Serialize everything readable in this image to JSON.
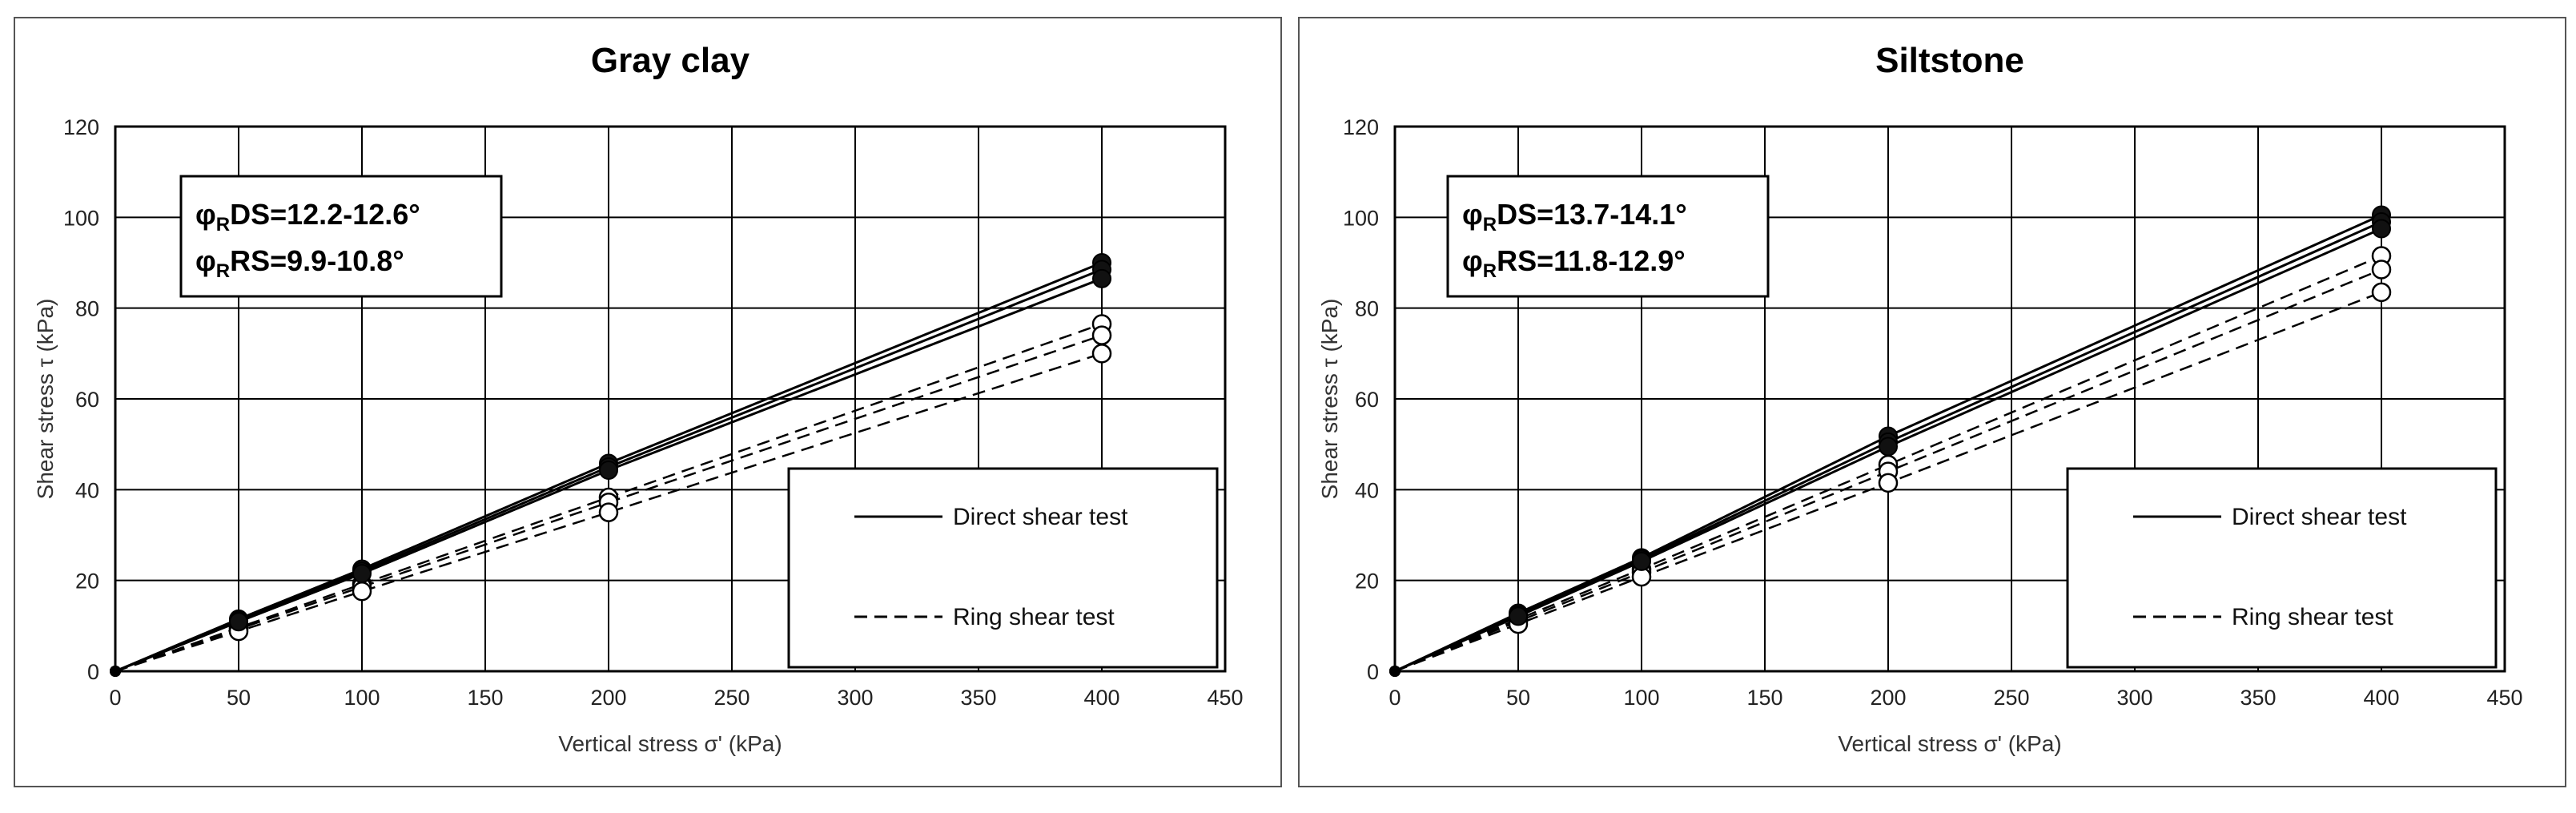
{
  "chart_data": [
    {
      "type": "line",
      "title": "Gray clay",
      "xlabel": "Vertical stress σ' (kPa)",
      "ylabel": "Shear stress τ (kPa)",
      "xlim": [
        0,
        450
      ],
      "ylim": [
        0,
        120
      ],
      "xticks": [
        "0",
        "50",
        "100",
        "150",
        "200",
        "250",
        "300",
        "350",
        "400",
        "450"
      ],
      "yticks": [
        "0",
        "20",
        "40",
        "60",
        "80",
        "100",
        "120"
      ],
      "grid": true,
      "annotation": {
        "line1": {
          "prefix": "φ",
          "sub": "R",
          "text": "DS=12.2-12.6°"
        },
        "line2": {
          "prefix": "φ",
          "sub": "R",
          "text": "RS=9.9-10.8°"
        }
      },
      "legend": {
        "position": "bottom-right",
        "entries": [
          "Direct shear test",
          "Ring shear test"
        ]
      },
      "series": [
        {
          "name": "Direct shear test",
          "style": "solid",
          "marker": "filled-circle",
          "x": [
            0,
            50,
            100,
            200,
            400
          ],
          "y": [
            0,
            11.5,
            22.5,
            45.8,
            90.0
          ]
        },
        {
          "name": "Direct shear test",
          "style": "solid",
          "marker": "filled-circle",
          "x": [
            0,
            50,
            100,
            200,
            400
          ],
          "y": [
            0,
            11.2,
            22.0,
            45.0,
            88.5
          ]
        },
        {
          "name": "Direct shear test",
          "style": "solid",
          "marker": "filled-circle",
          "x": [
            0,
            50,
            100,
            200,
            400
          ],
          "y": [
            0,
            10.9,
            21.5,
            44.3,
            86.5
          ]
        },
        {
          "name": "Ring shear test",
          "style": "dashed",
          "marker": "open-circle",
          "x": [
            0,
            50,
            100,
            200,
            400
          ],
          "y": [
            0,
            9.6,
            19.2,
            38.3,
            76.5
          ]
        },
        {
          "name": "Ring shear test",
          "style": "dashed",
          "marker": "open-circle",
          "x": [
            0,
            50,
            100,
            200,
            400
          ],
          "y": [
            0,
            9.3,
            18.6,
            37.2,
            74.0
          ]
        },
        {
          "name": "Ring shear test",
          "style": "dashed",
          "marker": "open-circle",
          "x": [
            0,
            50,
            100,
            200,
            400
          ],
          "y": [
            0,
            8.8,
            17.6,
            35.0,
            70.0
          ]
        }
      ]
    },
    {
      "type": "line",
      "title": "Siltstone",
      "xlabel": "Vertical stress σ' (kPa)",
      "ylabel": "Shear stress τ (kPa)",
      "xlim": [
        0,
        450
      ],
      "ylim": [
        0,
        120
      ],
      "xticks": [
        "0",
        "50",
        "100",
        "150",
        "200",
        "250",
        "300",
        "350",
        "400",
        "450"
      ],
      "yticks": [
        "0",
        "20",
        "40",
        "60",
        "80",
        "100",
        "120"
      ],
      "grid": true,
      "annotation": {
        "line1": {
          "prefix": "φ",
          "sub": "R",
          "text": "DS=13.7-14.1°"
        },
        "line2": {
          "prefix": "φ",
          "sub": "R",
          "text": "RS=11.8-12.9°"
        }
      },
      "legend": {
        "position": "bottom-right",
        "entries": [
          "Direct shear test",
          "Ring shear test"
        ]
      },
      "series": [
        {
          "name": "Direct shear test",
          "style": "solid",
          "marker": "filled-circle",
          "x": [
            0,
            50,
            100,
            200,
            400
          ],
          "y": [
            0,
            12.8,
            25.0,
            51.8,
            100.5
          ]
        },
        {
          "name": "Direct shear test",
          "style": "solid",
          "marker": "filled-circle",
          "x": [
            0,
            50,
            100,
            200,
            400
          ],
          "y": [
            0,
            12.4,
            24.6,
            50.5,
            99.0
          ]
        },
        {
          "name": "Direct shear test",
          "style": "solid",
          "marker": "filled-circle",
          "x": [
            0,
            50,
            100,
            200,
            400
          ],
          "y": [
            0,
            12.1,
            24.2,
            49.5,
            97.5
          ]
        },
        {
          "name": "Ring shear test",
          "style": "dashed",
          "marker": "open-circle",
          "x": [
            0,
            50,
            100,
            200,
            400
          ],
          "y": [
            0,
            11.5,
            22.5,
            45.5,
            91.5
          ]
        },
        {
          "name": "Ring shear test",
          "style": "dashed",
          "marker": "open-circle",
          "x": [
            0,
            50,
            100,
            200,
            400
          ],
          "y": [
            0,
            11.0,
            21.8,
            44.0,
            88.5
          ]
        },
        {
          "name": "Ring shear test",
          "style": "dashed",
          "marker": "open-circle",
          "x": [
            0,
            50,
            100,
            200,
            400
          ],
          "y": [
            0,
            10.4,
            20.8,
            41.5,
            83.5
          ]
        }
      ]
    }
  ]
}
